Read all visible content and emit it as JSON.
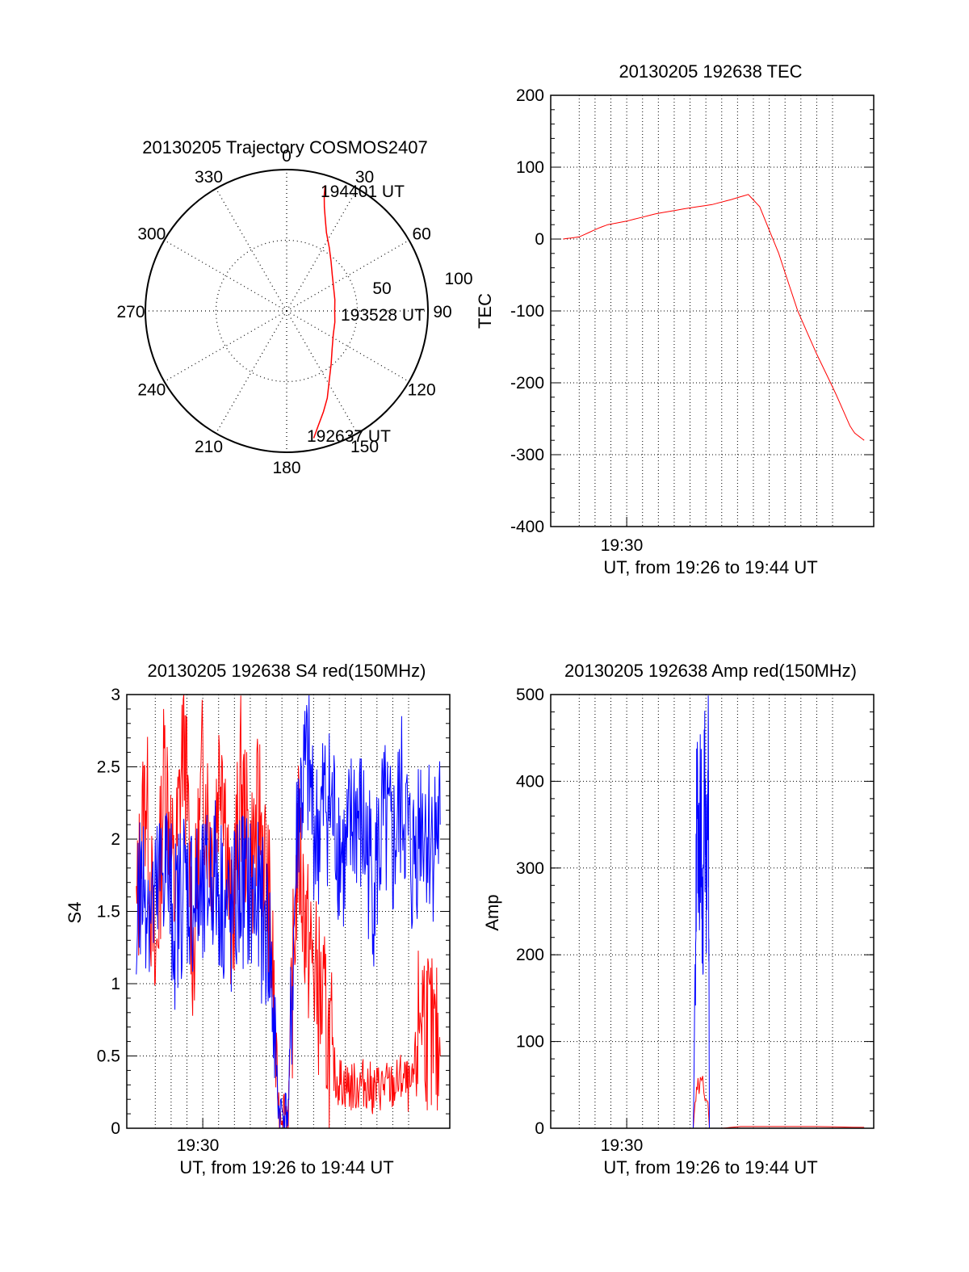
{
  "colors": {
    "red": "#ff0000",
    "blue": "#0000ff",
    "axis": "#000000",
    "grid": "#000000"
  },
  "chart_data": [
    {
      "id": "trajectory",
      "type": "polar",
      "title": "20130205 Trajectory COSMOS2407",
      "angle_ticks": [
        "0",
        "30",
        "60",
        "90",
        "120",
        "150",
        "180",
        "210",
        "240",
        "270",
        "300",
        "330"
      ],
      "radial_ticks": [
        "50",
        "100"
      ],
      "radial_max": 100,
      "series": [
        {
          "color": "red",
          "points": [
            [
              168,
              92
            ],
            [
              165,
              85
            ],
            [
              160,
              76
            ],
            [
              155,
              68
            ],
            [
              148,
              57
            ],
            [
              140,
              49
            ],
            [
              130,
              42
            ],
            [
              117,
              37
            ],
            [
              103,
              35
            ],
            [
              90,
              34
            ],
            [
              77,
              35
            ],
            [
              64,
              37
            ],
            [
              52,
              41
            ],
            [
              42,
              47
            ],
            [
              34,
              54
            ],
            [
              27,
              62
            ],
            [
              23,
              70
            ],
            [
              20,
              78
            ],
            [
              18,
              86
            ],
            [
              17,
              93
            ]
          ]
        }
      ],
      "annotations": [
        {
          "text": "194401 UT",
          "at": [
            17,
            93
          ]
        },
        {
          "text": "193528 UT",
          "at": [
            88,
            38
          ]
        },
        {
          "text": "192637 UT",
          "at": [
            168,
            92
          ]
        }
      ]
    },
    {
      "id": "tec",
      "type": "line",
      "title": "20130205 192638 TEC",
      "xlabel": "UT, from 19:26 to 19:44 UT",
      "ylabel": "TEC",
      "xlim": [
        19.42,
        19.76
      ],
      "ylim": [
        -400,
        200
      ],
      "yticks": [
        "-400",
        "-300",
        "-200",
        "-100",
        "0",
        "100",
        "200"
      ],
      "xtick_label": "19:30",
      "xtick_value": 19.5,
      "series": [
        {
          "color": "red",
          "x": [
            19.433,
            19.45,
            19.47,
            19.48,
            19.5,
            19.53,
            19.56,
            19.59,
            19.61,
            19.628,
            19.64,
            19.66,
            19.68,
            19.7,
            19.72,
            19.735,
            19.74,
            19.75
          ],
          "y": [
            0,
            3,
            15,
            20,
            25,
            35,
            42,
            48,
            55,
            62,
            45,
            -20,
            -100,
            -160,
            -215,
            -260,
            -270,
            -280
          ]
        }
      ]
    },
    {
      "id": "s4",
      "type": "line",
      "title": "20130205 192638 S4 red(150MHz)",
      "xlabel": "UT, from 19:26 to 19:44 UT",
      "ylabel": "S4",
      "xlim": [
        19.42,
        19.76
      ],
      "ylim": [
        0,
        3
      ],
      "yticks": [
        "0",
        "0.5",
        "1",
        "1.5",
        "2",
        "2.5",
        "3"
      ],
      "xtick_label": "19:30",
      "xtick_value": 19.5,
      "series": [
        {
          "color": "red",
          "x": [
            19.43,
            19.44,
            19.45,
            19.46,
            19.47,
            19.48,
            19.49,
            19.5,
            19.51,
            19.52,
            19.53,
            19.54,
            19.55,
            19.56,
            19.57,
            19.58,
            19.59,
            19.6,
            19.61,
            19.62,
            19.63,
            19.64,
            19.65,
            19.66,
            19.67,
            19.68,
            19.69,
            19.7,
            19.71,
            19.72,
            19.73,
            19.74,
            19.75
          ],
          "y": [
            1.4,
            2.4,
            1.0,
            2.6,
            1.6,
            2.8,
            1.2,
            2.5,
            1.9,
            2.7,
            1.3,
            2.4,
            1.8,
            2.2,
            1.5,
            0.15,
            0.12,
            2.0,
            1.3,
            1.0,
            0.7,
            0.35,
            0.3,
            0.28,
            0.32,
            0.26,
            0.3,
            0.28,
            0.35,
            0.24,
            0.9,
            0.6,
            0.5
          ]
        },
        {
          "color": "blue",
          "x": [
            19.43,
            19.44,
            19.45,
            19.46,
            19.47,
            19.48,
            19.49,
            19.5,
            19.51,
            19.52,
            19.53,
            19.54,
            19.55,
            19.56,
            19.57,
            19.58,
            19.59,
            19.6,
            19.61,
            19.62,
            19.63,
            19.64,
            19.65,
            19.66,
            19.67,
            19.68,
            19.69,
            19.7,
            19.71,
            19.72,
            19.73,
            19.74,
            19.75
          ],
          "y": [
            1.6,
            1.7,
            1.5,
            1.9,
            1.4,
            1.7,
            1.6,
            1.5,
            1.8,
            1.6,
            1.4,
            1.7,
            1.6,
            1.5,
            1.3,
            0.12,
            0.1,
            2.2,
            2.5,
            2.0,
            2.3,
            2.1,
            1.8,
            2.2,
            2.0,
            1.7,
            2.1,
            1.9,
            2.3,
            1.8,
            2.2,
            2.0,
            2.1
          ]
        }
      ]
    },
    {
      "id": "amp",
      "type": "line",
      "title": "20130205 192638 Amp red(150MHz)",
      "xlabel": "UT, from 19:26 to 19:44 UT",
      "ylabel": "Amp",
      "xlim": [
        19.42,
        19.76
      ],
      "ylim": [
        0,
        500
      ],
      "yticks": [
        "0",
        "100",
        "200",
        "300",
        "400",
        "500"
      ],
      "xtick_label": "19:30",
      "xtick_value": 19.5,
      "series": [
        {
          "color": "red",
          "x": [
            19.433,
            19.5,
            19.57,
            19.572,
            19.575,
            19.58,
            19.585,
            19.587,
            19.6,
            19.62,
            19.65,
            19.7,
            19.75
          ],
          "y": [
            0,
            0,
            0,
            30,
            45,
            50,
            40,
            0,
            0,
            2,
            2,
            2,
            1
          ]
        },
        {
          "color": "blue",
          "x": [
            19.433,
            19.5,
            19.57,
            19.572,
            19.574,
            19.576,
            19.578,
            19.58,
            19.582,
            19.584,
            19.586,
            19.587,
            19.6,
            19.65,
            19.7,
            19.75
          ],
          "y": [
            0,
            0,
            0,
            150,
            410,
            300,
            380,
            220,
            395,
            260,
            400,
            0,
            0,
            0,
            0,
            0
          ]
        }
      ]
    }
  ]
}
